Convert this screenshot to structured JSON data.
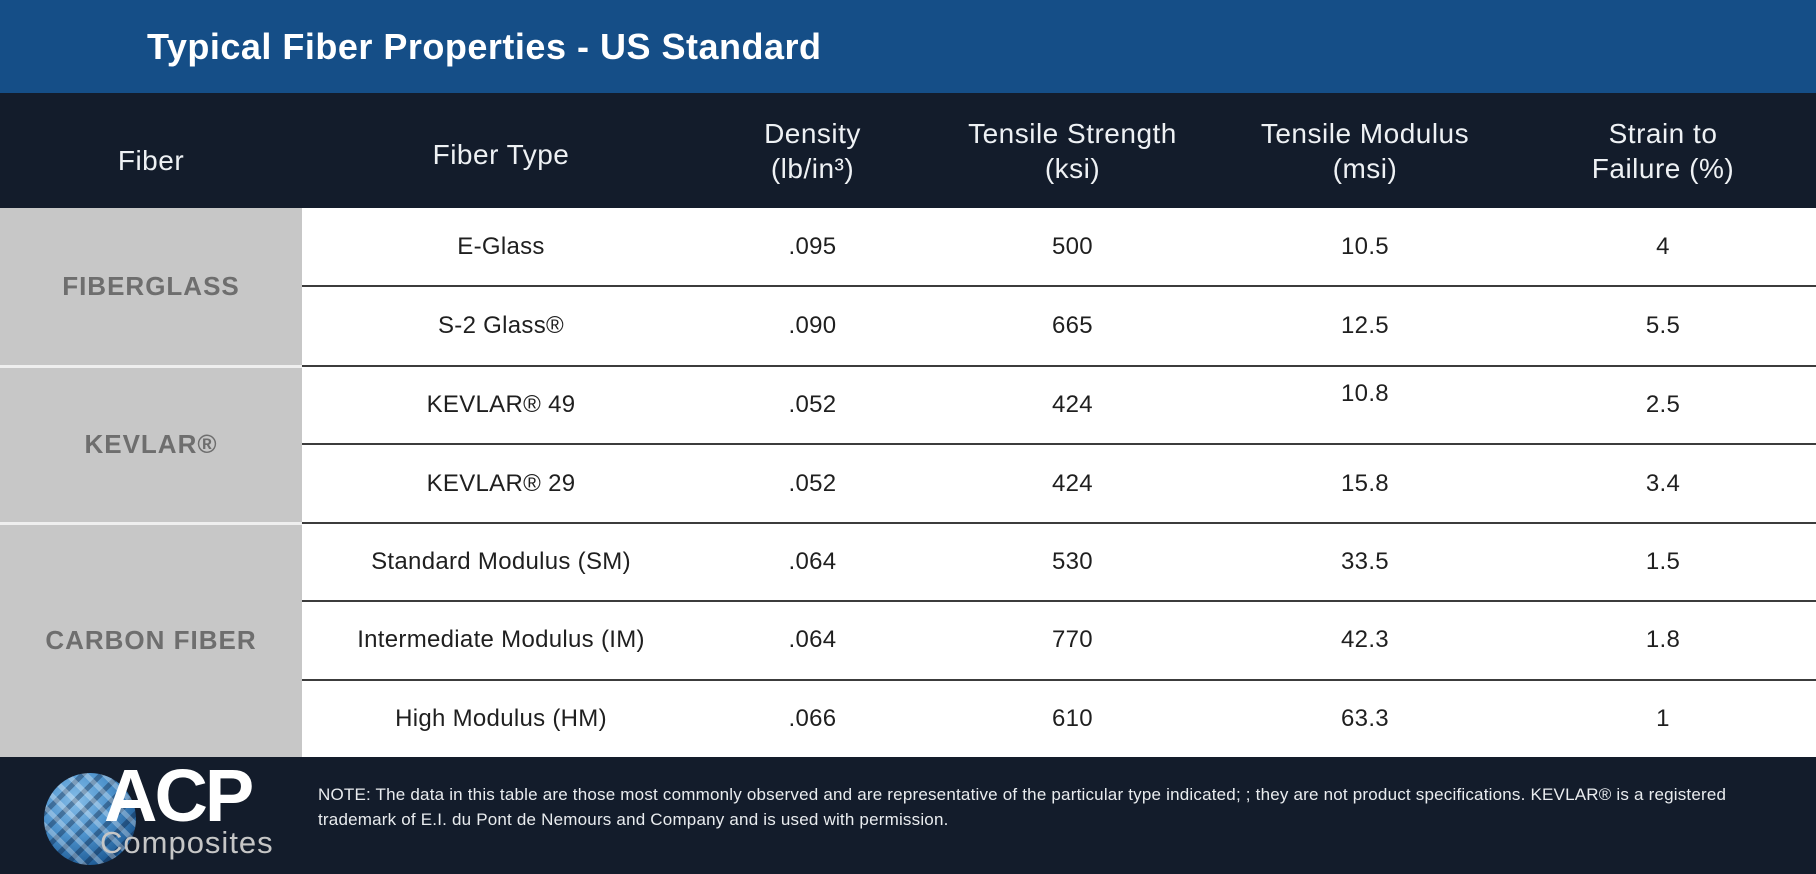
{
  "title_bar": {
    "title": "Typical Fiber Properties - US Standard"
  },
  "colors": {
    "title_bar_bg": "#154e87",
    "header_bg": "#131c2b",
    "footer_bg": "#131c2b",
    "group_cell_bg": "#c7c7c7",
    "group_label_text": "#6e6e6e",
    "divider": "#3c3c3c",
    "logo_globe_blue": "#4d92cc"
  },
  "table": {
    "columns": [
      {
        "key": "fiber",
        "label": "Fiber"
      },
      {
        "key": "type",
        "label": "Fiber Type"
      },
      {
        "key": "density",
        "label": "Density",
        "sublabel": "(lb/in³)"
      },
      {
        "key": "tensile_strength",
        "label": "Tensile Strength",
        "sublabel": "(ksi)"
      },
      {
        "key": "tensile_modulus",
        "label": "Tensile Modulus",
        "sublabel": "(msi)"
      },
      {
        "key": "strain",
        "label": "Strain to",
        "sublabel": "Failure (%)"
      }
    ],
    "groups": [
      {
        "fiber": "FIBERGLASS",
        "rows": [
          {
            "type": "E-Glass",
            "density": ".095",
            "tensile_strength": "500",
            "tensile_modulus": "10.5",
            "strain": "4"
          },
          {
            "type": "S-2 Glass®",
            "density": ".090",
            "tensile_strength": "665",
            "tensile_modulus": "12.5",
            "strain": "5.5"
          }
        ]
      },
      {
        "fiber": "KEVLAR®",
        "rows": [
          {
            "type": "KEVLAR® 49",
            "density": ".052",
            "tensile_strength": "424",
            "tensile_modulus": "10.8",
            "strain": "2.5"
          },
          {
            "type": "KEVLAR® 29",
            "density": ".052",
            "tensile_strength": "424",
            "tensile_modulus": "15.8",
            "strain": "3.4"
          }
        ]
      },
      {
        "fiber": "CARBON FIBER",
        "rows": [
          {
            "type": "Standard Modulus  (SM)",
            "density": ".064",
            "tensile_strength": "530",
            "tensile_modulus": "33.5",
            "strain": "1.5"
          },
          {
            "type": "Intermediate Modulus  (IM)",
            "density": ".064",
            "tensile_strength": "770",
            "tensile_modulus": "42.3",
            "strain": "1.8"
          },
          {
            "type": "High Modulus (HM)",
            "density": ".066",
            "tensile_strength": "610",
            "tensile_modulus": "63.3",
            "strain": "1"
          }
        ]
      }
    ]
  },
  "footer": {
    "logo": {
      "acp": "ACP",
      "composites": "Composites"
    },
    "note": "NOTE: The data in this table are those most commonly observed and are representative of the particular type indicated; ; they are not product specifications. KEVLAR® is a registered trademark of E.I. du Pont de Nemours and Company and is used with permission."
  },
  "chart_data": {
    "type": "table",
    "title": "Typical Fiber Properties - US Standard",
    "columns": [
      "Fiber",
      "Fiber Type",
      "Density (lb/in³)",
      "Tensile Strength (ksi)",
      "Tensile Modulus (msi)",
      "Strain to Failure (%)"
    ],
    "rows": [
      [
        "FIBERGLASS",
        "E-Glass",
        0.095,
        500,
        10.5,
        4
      ],
      [
        "FIBERGLASS",
        "S-2 Glass®",
        0.09,
        665,
        12.5,
        5.5
      ],
      [
        "KEVLAR®",
        "KEVLAR® 49",
        0.052,
        424,
        10.8,
        2.5
      ],
      [
        "KEVLAR®",
        "KEVLAR® 29",
        0.052,
        424,
        15.8,
        3.4
      ],
      [
        "CARBON FIBER",
        "Standard Modulus (SM)",
        0.064,
        530,
        33.5,
        1.5
      ],
      [
        "CARBON FIBER",
        "Intermediate Modulus (IM)",
        0.064,
        770,
        42.3,
        1.8
      ],
      [
        "CARBON FIBER",
        "High Modulus (HM)",
        0.066,
        610,
        63.3,
        1
      ]
    ]
  }
}
